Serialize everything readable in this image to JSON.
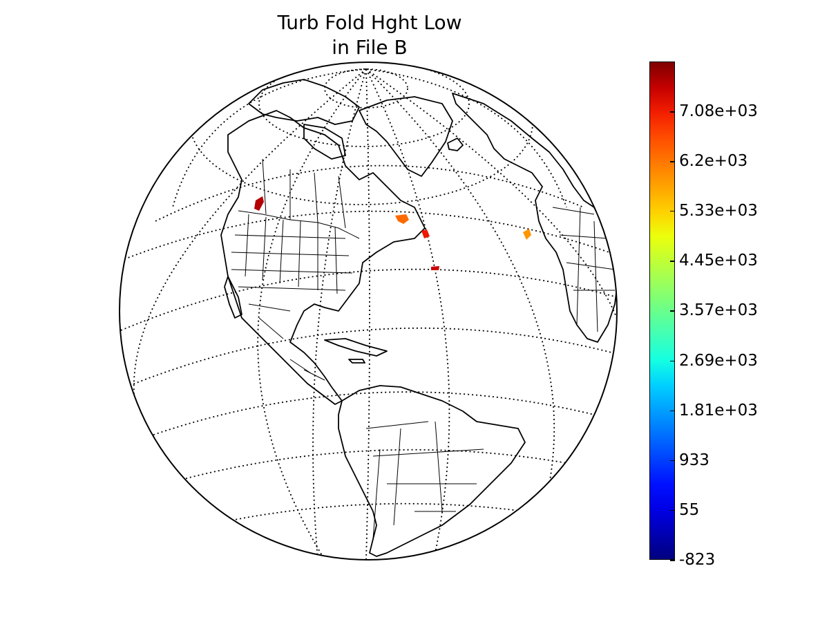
{
  "title": {
    "line1": "Turb Fold Hght Low",
    "line2": "in File B"
  },
  "map": {
    "projection": "orthographic",
    "center": "Americas (approx. 75°W, 20°N)",
    "graticule": "dotted",
    "features": [
      "coastlines",
      "country borders",
      "US states",
      "Canadian provinces"
    ]
  },
  "colorbar": {
    "colormap": "jet",
    "min": -823,
    "max": 7960,
    "ticks": [
      {
        "value": -823,
        "label": "-823"
      },
      {
        "value": 55,
        "label": "55"
      },
      {
        "value": 933,
        "label": "933"
      },
      {
        "value": 1810,
        "label": "1.81e+03"
      },
      {
        "value": 2690,
        "label": "2.69e+03"
      },
      {
        "value": 3570,
        "label": "3.57e+03"
      },
      {
        "value": 4450,
        "label": "4.45e+03"
      },
      {
        "value": 5330,
        "label": "5.33e+03"
      },
      {
        "value": 6200,
        "label": "6.2e+03"
      },
      {
        "value": 7080,
        "label": "7.08e+03"
      }
    ]
  },
  "data_patches": [
    {
      "region": "British Columbia / Pacific Northwest",
      "color": "#b40000"
    },
    {
      "region": "Gulf of St. Lawrence",
      "color": "#ff6a00"
    },
    {
      "region": "Nova Scotia",
      "color": "#ee1800"
    },
    {
      "region": "Central North Atlantic",
      "color": "#cc0000"
    },
    {
      "region": "Eastern North Atlantic near Iberia",
      "color": "#ff9500"
    }
  ]
}
